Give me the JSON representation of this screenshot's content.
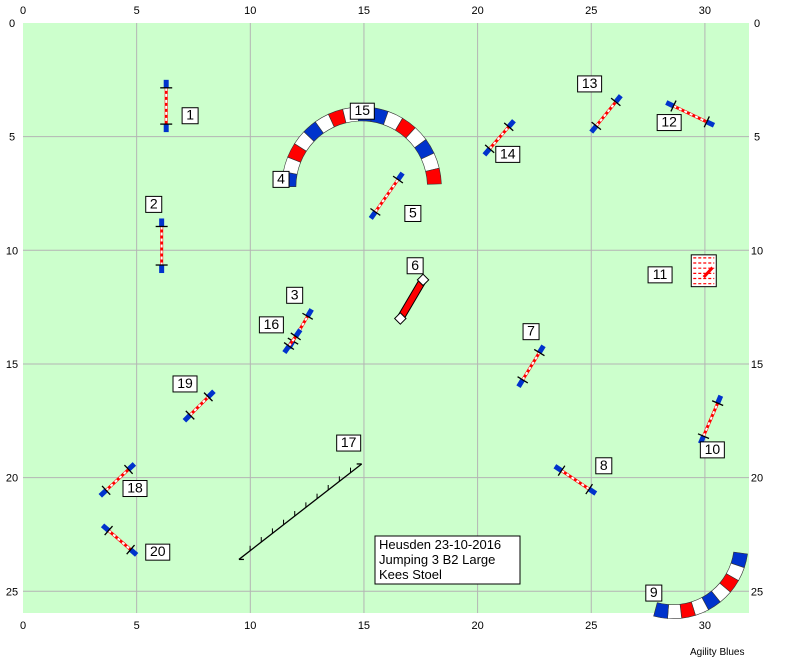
{
  "field": {
    "bg": "#ccffcc",
    "grid_color": "#b4b4b4",
    "x_ticks": [
      "0",
      "5",
      "10",
      "15",
      "20",
      "25",
      "30"
    ],
    "y_ticks": [
      "0",
      "5",
      "10",
      "15",
      "20",
      "25"
    ]
  },
  "colors": {
    "blue": "#0033cc",
    "red": "#ff0000",
    "white": "#ffffff",
    "black": "#000000"
  },
  "info": {
    "line1": "Heusden 23-10-2016",
    "line2": "Jumping 3 B2 Large",
    "line3": "Kees Stoel"
  },
  "credit": "Agility Blues",
  "obstacles": [
    {
      "num": "1",
      "type": "jump",
      "x1": 6.3,
      "y1": 2.5,
      "x2": 6.3,
      "y2": 4.8,
      "label_x": 7.0,
      "label_y": 4.3
    },
    {
      "num": "2",
      "type": "jump",
      "x1": 6.1,
      "y1": 8.6,
      "x2": 6.1,
      "y2": 11.0,
      "label_x": 5.4,
      "label_y": 8.2
    },
    {
      "num": "3",
      "type": "jump",
      "x1": 11.7,
      "y1": 14.3,
      "x2": 12.7,
      "y2": 12.6,
      "label_x": 11.6,
      "label_y": 12.2
    },
    {
      "num": "4",
      "type": "tunnel",
      "cx": 14.9,
      "cy": 7.2,
      "r": 3.2,
      "a1": 180,
      "a2": 278,
      "label_x": 11.0,
      "label_y": 7.1
    },
    {
      "num": "5",
      "type": "jump",
      "x1": 15.3,
      "y1": 8.6,
      "x2": 16.7,
      "y2": 6.6,
      "label_x": 16.8,
      "label_y": 8.6
    },
    {
      "num": "6",
      "type": "weave",
      "x1": 16.6,
      "y1": 13.0,
      "x2": 17.6,
      "y2": 11.3,
      "label_x": 16.9,
      "label_y": 10.9
    },
    {
      "num": "7",
      "type": "jump",
      "x1": 21.8,
      "y1": 16.0,
      "x2": 22.9,
      "y2": 14.2,
      "label_x": 22.0,
      "label_y": 13.8
    },
    {
      "num": "8",
      "type": "jump",
      "x1": 23.4,
      "y1": 19.5,
      "x2": 25.2,
      "y2": 20.7,
      "label_x": 25.2,
      "label_y": 19.7
    },
    {
      "num": "9",
      "type": "tunnel",
      "cx": 28.6,
      "cy": 22.9,
      "r": 3.0,
      "a1": 8,
      "a2": 105,
      "label_x": 27.4,
      "label_y": 25.3
    },
    {
      "num": "10",
      "type": "jump",
      "x1": 29.8,
      "y1": 18.5,
      "x2": 30.7,
      "y2": 16.4,
      "label_x": 29.8,
      "label_y": 19.0
    },
    {
      "num": "11",
      "type": "tire",
      "x": 29.4,
      "y": 10.2,
      "w": 1.1,
      "h": 1.4,
      "label_x": 27.5,
      "label_y": 11.3
    },
    {
      "num": "12",
      "type": "jump",
      "x1": 28.3,
      "y1": 3.5,
      "x2": 30.4,
      "y2": 4.5,
      "label_x": 27.9,
      "label_y": 4.6
    },
    {
      "num": "13",
      "type": "jump",
      "x1": 25.0,
      "y1": 4.8,
      "x2": 26.3,
      "y2": 3.2,
      "label_x": 24.4,
      "label_y": 2.9
    },
    {
      "num": "14",
      "type": "jump",
      "x1": 20.3,
      "y1": 5.8,
      "x2": 21.6,
      "y2": 4.3,
      "label_x": 20.8,
      "label_y": 6.0
    },
    {
      "num": "15",
      "type": "tunnel",
      "cx": 14.9,
      "cy": 7.2,
      "r": 3.2,
      "a1": 278,
      "a2": 358,
      "label_x": 14.4,
      "label_y": 4.1
    },
    {
      "num": "16",
      "type": "jump",
      "x1": 11.5,
      "y1": 14.5,
      "x2": 12.2,
      "y2": 13.5,
      "label_x": 10.4,
      "label_y": 13.5
    },
    {
      "num": "17",
      "type": "wall",
      "x1": 9.5,
      "y1": 23.6,
      "x2": 14.9,
      "y2": 19.4,
      "label_x": 13.8,
      "label_y": 18.7
    },
    {
      "num": "18",
      "type": "jump",
      "x1": 3.4,
      "y1": 20.8,
      "x2": 4.9,
      "y2": 19.4,
      "label_x": 4.4,
      "label_y": 20.7
    },
    {
      "num": "19",
      "type": "jump",
      "x1": 7.1,
      "y1": 17.5,
      "x2": 8.4,
      "y2": 16.2,
      "label_x": 6.6,
      "label_y": 16.1
    },
    {
      "num": "20",
      "type": "jump",
      "x1": 3.5,
      "y1": 22.1,
      "x2": 5.0,
      "y2": 23.4,
      "label_x": 5.4,
      "label_y": 23.5
    }
  ]
}
